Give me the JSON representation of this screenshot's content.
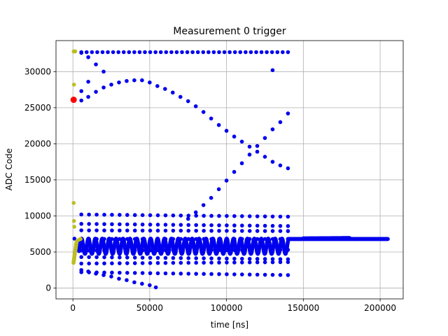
{
  "chart_data": {
    "type": "scatter",
    "title": "Measurement 0 trigger",
    "xlabel": "time [ns]",
    "ylabel": "ADC Code",
    "xlim": [
      -11000,
      215000
    ],
    "ylim": [
      -1500,
      34300
    ],
    "grid": true,
    "x_ticks": [
      0,
      50000,
      100000,
      150000,
      200000
    ],
    "x_tick_labels": [
      "0",
      "50000",
      "100000",
      "150000",
      "200000"
    ],
    "y_ticks": [
      0,
      5000,
      10000,
      15000,
      20000,
      25000,
      30000
    ],
    "y_tick_labels": [
      "0",
      "5000",
      "10000",
      "15000",
      "20000",
      "25000",
      "30000"
    ],
    "colors": {
      "blue": "#0000ee",
      "olive": "#bcbd22",
      "red": "#ff0000"
    },
    "series": [
      {
        "color": "blue",
        "groups": [
          {
            "kind": "ramp",
            "x_start": 5500,
            "x_end": 140000,
            "count": 40,
            "y_start": 32700,
            "y_end": 32700
          },
          {
            "kind": "points",
            "x": [
              5500,
              10000,
              15000,
              20000
            ],
            "y": [
              32600,
              32000,
              31000,
              30000
            ]
          },
          {
            "kind": "points",
            "x": [
              130000
            ],
            "y": [
              30200
            ]
          },
          {
            "kind": "points",
            "x": [
              5500,
              10000,
              15000,
              20000,
              25000,
              30000,
              35000,
              40000,
              45000,
              50000,
              55000,
              60000,
              65000,
              70000,
              75000,
              80000,
              85000,
              90000,
              95000,
              100000,
              105000,
              110000,
              115000,
              120000,
              125000,
              130000,
              135000,
              140000
            ],
            "y": [
              26000,
              26500,
              27200,
              27800,
              28200,
              28500,
              28700,
              28800,
              28800,
              28500,
              28000,
              27600,
              27100,
              26500,
              25900,
              25200,
              24400,
              23500,
              22600,
              21800,
              21000,
              20300,
              19600,
              18900,
              18200,
              17500,
              17000,
              16600
            ]
          },
          {
            "kind": "points",
            "x": [
              5500,
              10000
            ],
            "y": [
              27300,
              28600
            ]
          },
          {
            "kind": "points",
            "x": [
              75000,
              80000,
              85000,
              90000,
              95000,
              100000,
              105000,
              110000,
              115000,
              120000,
              125000,
              130000,
              135000,
              140000
            ],
            "y": [
              9600,
              10500,
              11500,
              12500,
              13700,
              14900,
              16100,
              17300,
              18500,
              19700,
              20800,
              22000,
              23000,
              24200
            ]
          },
          {
            "kind": "ramp",
            "x_start": 5500,
            "x_end": 140000,
            "count": 28,
            "y_start": 10200,
            "y_end": 9900
          },
          {
            "kind": "ramp",
            "x_start": 5500,
            "x_end": 140000,
            "count": 28,
            "y_start": 8900,
            "y_end": 8600
          },
          {
            "kind": "ramp",
            "x_start": 5500,
            "x_end": 140000,
            "count": 28,
            "y_start": 8000,
            "y_end": 7900
          },
          {
            "kind": "ramp",
            "x_start": 5500,
            "x_end": 140000,
            "count": 28,
            "y_start": 5200,
            "y_end": 5300
          },
          {
            "kind": "ramp",
            "x_start": 5500,
            "x_end": 140000,
            "count": 28,
            "y_start": 4300,
            "y_end": 4000
          },
          {
            "kind": "ramp",
            "x_start": 5500,
            "x_end": 140000,
            "count": 28,
            "y_start": 3400,
            "y_end": 3600
          },
          {
            "kind": "ramp",
            "x_start": 5500,
            "x_end": 140000,
            "count": 28,
            "y_start": 2200,
            "y_end": 1800
          },
          {
            "kind": "points",
            "x": [
              5500,
              10000,
              15000,
              20000,
              25000,
              30000,
              35000,
              40000,
              45000,
              50000,
              54000
            ],
            "y": [
              2500,
              2300,
              2000,
              1800,
              1600,
              1300,
              1100,
              800,
              600,
              400,
              100
            ]
          },
          {
            "kind": "ramp",
            "x_start": 5500,
            "x_end": 140000,
            "count": 28,
            "y_start": 6800,
            "y_end": 6800
          },
          {
            "kind": "band",
            "x_start": 4000,
            "x_end": 140000,
            "count": 1100,
            "y_center": 5800,
            "y_amp": 1050,
            "period": 4500
          },
          {
            "kind": "ramp",
            "x_start": 140000,
            "x_end": 205000,
            "count": 260,
            "y_start": 6800,
            "y_end": 6800
          },
          {
            "kind": "ramp",
            "x_start": 150000,
            "x_end": 180000,
            "count": 40,
            "y_start": 6900,
            "y_end": 6950
          },
          {
            "kind": "points",
            "x": [
              1000
            ],
            "y": [
              6850
            ]
          }
        ]
      },
      {
        "color": "olive",
        "groups": [
          {
            "kind": "points",
            "x": [
              500,
              1000,
              1500
            ],
            "y": [
              32800,
              32800,
              32800
            ]
          },
          {
            "kind": "points",
            "x": [
              700
            ],
            "y": [
              28200
            ]
          },
          {
            "kind": "points",
            "x": [
              500
            ],
            "y": [
              11800
            ]
          },
          {
            "kind": "points",
            "x": [
              700,
              900
            ],
            "y": [
              9300,
              8500
            ]
          },
          {
            "kind": "points",
            "x": [
              2500,
              4000,
              5000
            ],
            "y": [
              6500,
              6700,
              6800
            ]
          },
          {
            "kind": "ramp",
            "x_start": 400,
            "x_end": 2200,
            "count": 24,
            "y_start": 3500,
            "y_end": 6200
          }
        ]
      },
      {
        "color": "red",
        "groups": [
          {
            "kind": "points",
            "x": [
              500
            ],
            "y": [
              26100
            ],
            "size": "large"
          }
        ]
      }
    ]
  }
}
